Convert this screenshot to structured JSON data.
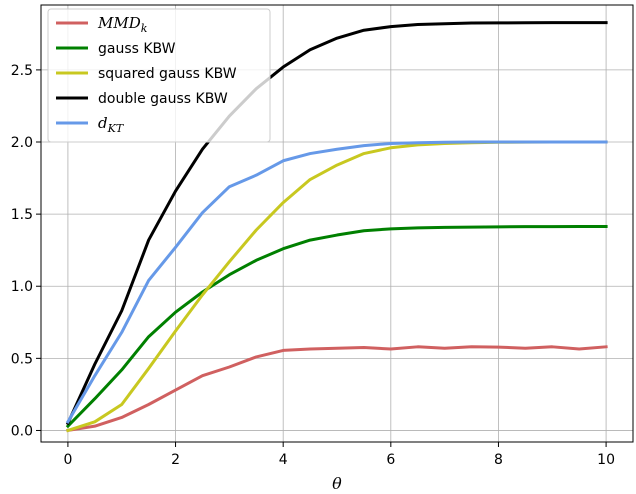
{
  "chart_data": {
    "type": "line",
    "title": "",
    "xlabel": "θ",
    "ylabel": "",
    "xlim": [
      -0.5,
      10.5
    ],
    "ylim": [
      -0.08,
      2.95
    ],
    "xticks": [
      0,
      2,
      4,
      6,
      8,
      10
    ],
    "yticks": [
      0.0,
      0.5,
      1.0,
      1.5,
      2.0,
      2.5
    ],
    "xtick_labels": [
      "0",
      "2",
      "4",
      "6",
      "8",
      "10"
    ],
    "ytick_labels": [
      "0.0",
      "0.5",
      "1.0",
      "1.5",
      "2.0",
      "2.5"
    ],
    "grid": true,
    "legend_position": "top-left",
    "x": [
      0,
      0.5,
      1,
      1.5,
      2,
      2.5,
      3,
      3.5,
      4,
      4.5,
      5,
      5.5,
      6,
      6.5,
      7,
      7.5,
      8,
      8.5,
      9,
      9.5,
      10
    ],
    "series": [
      {
        "name_main": "MMD",
        "name_sub": "k",
        "color": "#d06060",
        "values": [
          0.0,
          0.03,
          0.09,
          0.18,
          0.28,
          0.38,
          0.44,
          0.51,
          0.555,
          0.565,
          0.57,
          0.575,
          0.565,
          0.58,
          0.57,
          0.58,
          0.578,
          0.57,
          0.58,
          0.565,
          0.58
        ]
      },
      {
        "name": "gauss KBW",
        "color": "#008000",
        "values": [
          0.03,
          0.22,
          0.42,
          0.65,
          0.82,
          0.96,
          1.08,
          1.18,
          1.26,
          1.32,
          1.355,
          1.385,
          1.398,
          1.405,
          1.408,
          1.41,
          1.412,
          1.413,
          1.413,
          1.414,
          1.414
        ]
      },
      {
        "name": "squared gauss KBW",
        "color": "#c8c820",
        "values": [
          0.0,
          0.06,
          0.18,
          0.43,
          0.69,
          0.94,
          1.17,
          1.39,
          1.58,
          1.74,
          1.84,
          1.92,
          1.96,
          1.98,
          1.99,
          1.995,
          1.998,
          1.999,
          2.0,
          2.0,
          2.0
        ]
      },
      {
        "name": "double gauss KBW",
        "color": "#000000",
        "values": [
          0.05,
          0.46,
          0.83,
          1.32,
          1.66,
          1.95,
          2.18,
          2.37,
          2.52,
          2.64,
          2.72,
          2.775,
          2.8,
          2.815,
          2.82,
          2.825,
          2.826,
          2.827,
          2.828,
          2.828,
          2.828
        ]
      },
      {
        "name_main": "d",
        "name_sub": "KT",
        "color": "#6699e8",
        "values": [
          0.06,
          0.38,
          0.68,
          1.04,
          1.27,
          1.51,
          1.69,
          1.77,
          1.87,
          1.92,
          1.95,
          1.975,
          1.99,
          1.995,
          1.998,
          2.0,
          2.0,
          2.0,
          2.0,
          2.0,
          2.0
        ]
      }
    ]
  }
}
